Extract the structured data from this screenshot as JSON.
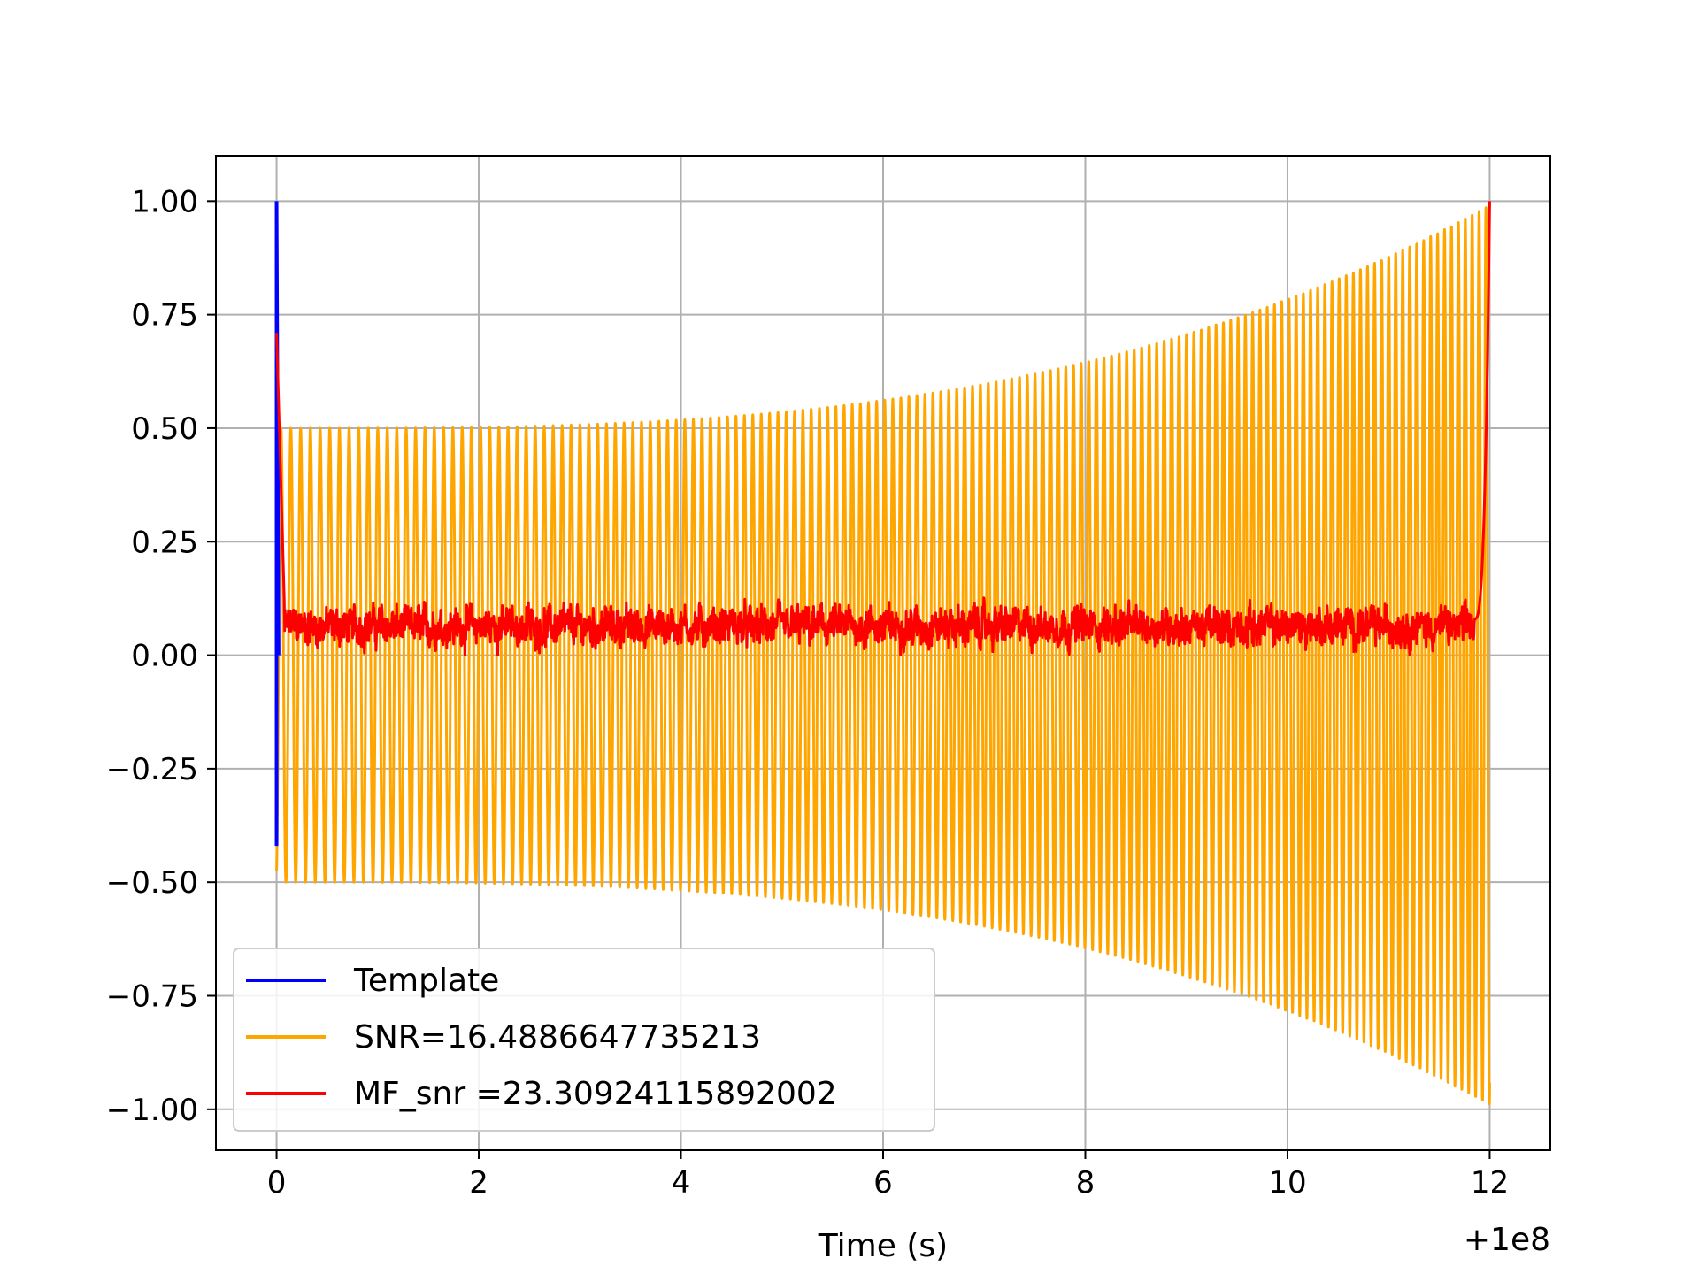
{
  "chart_data": {
    "type": "line",
    "title": "",
    "xlabel": "Time (s)",
    "ylabel": "",
    "x_offset_label": "+1e8",
    "xlim": [
      -0.6,
      12.6
    ],
    "ylim": [
      -1.09,
      1.1
    ],
    "grid": true,
    "legend_position": "lower-left",
    "x_ticks": [
      0,
      2,
      4,
      6,
      8,
      10,
      12
    ],
    "x_tick_labels": [
      "0",
      "2",
      "4",
      "6",
      "8",
      "10",
      "12"
    ],
    "y_ticks": [
      1.0,
      0.75,
      0.5,
      0.25,
      0.0,
      -0.25,
      -0.5,
      -0.75,
      -1.0
    ],
    "y_tick_labels": [
      "1.00",
      "0.75",
      "0.50",
      "0.25",
      "0.00",
      "−0.25",
      "−0.50",
      "−0.75",
      "−1.00"
    ],
    "series": [
      {
        "name": "Template",
        "color": "#0000ff",
        "description_points": [
          [
            0.0,
            -0.42
          ],
          [
            0.0,
            1.0
          ],
          [
            0.02,
            0.0
          ]
        ]
      },
      {
        "name": "SNR=16.4886647735213",
        "color": "#ffa500",
        "x_range": [
          0.0,
          12.0
        ],
        "envelope_start": 0.5,
        "envelope_end": 0.99,
        "cycles": 150
      },
      {
        "name": "MF_snr =23.30924115892002",
        "color": "#ff0000",
        "x_range": [
          0.0,
          12.0
        ],
        "start_value": 0.71,
        "baseline_range": [
          0.0,
          0.17
        ],
        "end_value": 1.0
      }
    ]
  }
}
